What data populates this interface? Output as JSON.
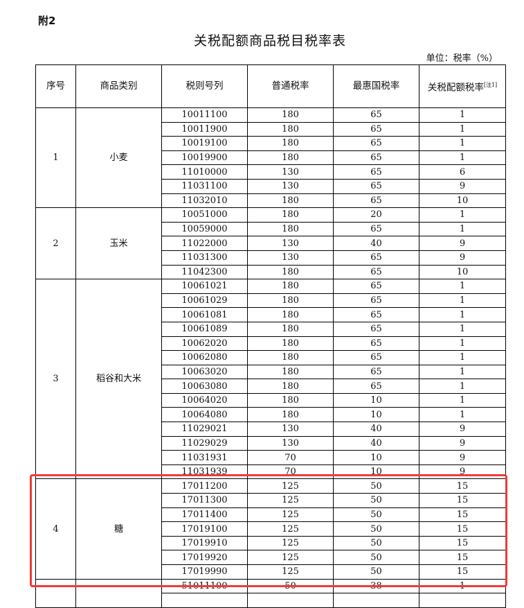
{
  "attachment_label": "附2",
  "title": "关税配额商品税目税率表",
  "unit_label": "单位：税率（%）",
  "headers": {
    "seq": "序号",
    "category": "商品类别",
    "code": "税则号列",
    "general": "普通税率",
    "mfn": "最惠国税率",
    "quota": "关税配额税率",
    "quota_note": "[注1]"
  },
  "sections": [
    {
      "seq": "1",
      "category": "小麦",
      "rows": [
        [
          "10011100",
          "180",
          "65",
          "1"
        ],
        [
          "10011900",
          "180",
          "65",
          "1"
        ],
        [
          "10019100",
          "180",
          "65",
          "1"
        ],
        [
          "10019900",
          "180",
          "65",
          "1"
        ],
        [
          "11010000",
          "130",
          "65",
          "6"
        ],
        [
          "11031100",
          "130",
          "65",
          "9"
        ],
        [
          "11032010",
          "180",
          "65",
          "10"
        ]
      ]
    },
    {
      "seq": "2",
      "category": "玉米",
      "rows": [
        [
          "10051000",
          "180",
          "20",
          "1"
        ],
        [
          "10059000",
          "180",
          "65",
          "1"
        ],
        [
          "11022000",
          "130",
          "40",
          "9"
        ],
        [
          "11031300",
          "130",
          "65",
          "9"
        ],
        [
          "11042300",
          "180",
          "65",
          "10"
        ]
      ]
    },
    {
      "seq": "3",
      "category": "稻谷和大米",
      "rows": [
        [
          "10061021",
          "180",
          "65",
          "1"
        ],
        [
          "10061029",
          "180",
          "65",
          "1"
        ],
        [
          "10061081",
          "180",
          "65",
          "1"
        ],
        [
          "10061089",
          "180",
          "65",
          "1"
        ],
        [
          "10062020",
          "180",
          "65",
          "1"
        ],
        [
          "10062080",
          "180",
          "65",
          "1"
        ],
        [
          "10063020",
          "180",
          "65",
          "1"
        ],
        [
          "10063080",
          "180",
          "65",
          "1"
        ],
        [
          "10064020",
          "180",
          "10",
          "1"
        ],
        [
          "10064080",
          "180",
          "10",
          "1"
        ],
        [
          "11029021",
          "130",
          "40",
          "9"
        ],
        [
          "11029029",
          "130",
          "40",
          "9"
        ],
        [
          "11031931",
          "70",
          "10",
          "9"
        ],
        [
          "11031939",
          "70",
          "10",
          "9"
        ]
      ]
    },
    {
      "seq": "4",
      "category": "糖",
      "rows": [
        [
          "17011200",
          "125",
          "50",
          "15"
        ],
        [
          "17011300",
          "125",
          "50",
          "15"
        ],
        [
          "17011400",
          "125",
          "50",
          "15"
        ],
        [
          "17019100",
          "125",
          "50",
          "15"
        ],
        [
          "17019910",
          "125",
          "50",
          "15"
        ],
        [
          "17019920",
          "125",
          "50",
          "15"
        ],
        [
          "17019990",
          "125",
          "50",
          "15"
        ]
      ]
    },
    {
      "seq": "",
      "category": "",
      "rows": [
        [
          "51011100",
          "50",
          "38",
          "1"
        ],
        [
          "",
          "",
          "",
          ""
        ]
      ]
    }
  ],
  "highlight_color": "#f03a3a"
}
